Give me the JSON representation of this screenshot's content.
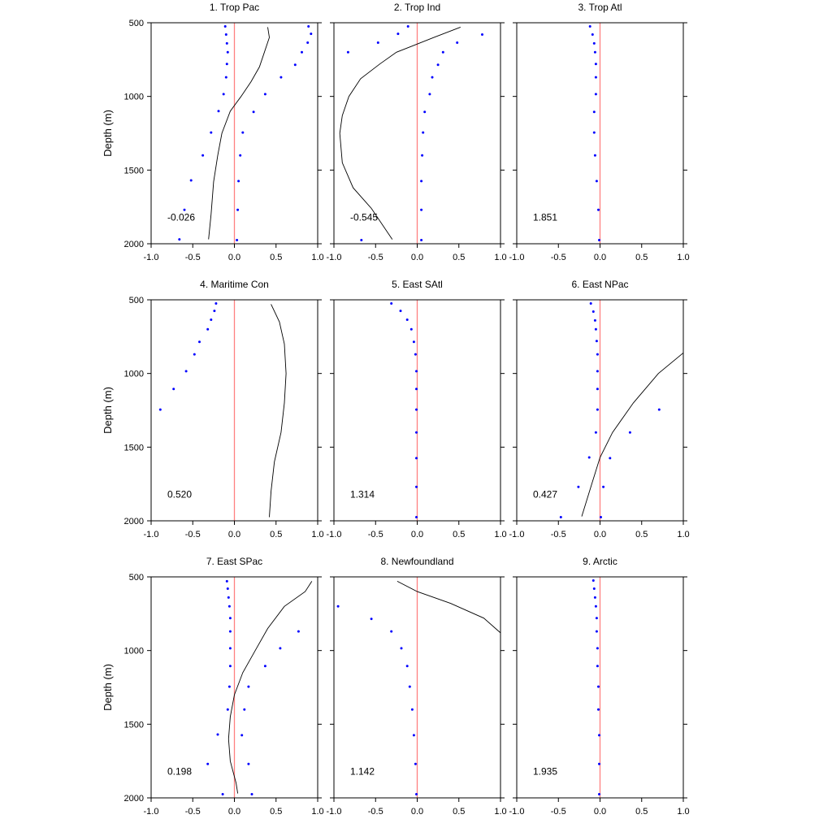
{
  "figure": {
    "ylabel": "Depth (m)",
    "xlim": [
      -1.0,
      1.0
    ],
    "ylim": [
      500,
      2000
    ],
    "y_inverted": true,
    "xticks": [
      "-1.0",
      "-0.5",
      "0.0",
      "0.5",
      "1.0"
    ],
    "yticks": [
      "500",
      "1000",
      "1500",
      "2000"
    ],
    "colors": {
      "points": "#0000ff",
      "zero_line": "#ff8080",
      "curve": "#000000",
      "axes": "#000000"
    }
  },
  "chart_data": [
    {
      "type": "scatter",
      "title": "1. Trop Pac",
      "annotation": "-0.026",
      "points": [
        [
          -0.11,
          525
        ],
        [
          -0.1,
          580
        ],
        [
          -0.09,
          640
        ],
        [
          -0.08,
          700
        ],
        [
          -0.09,
          780
        ],
        [
          -0.1,
          870
        ],
        [
          -0.13,
          985
        ],
        [
          -0.19,
          1100
        ],
        [
          -0.28,
          1245
        ],
        [
          -0.38,
          1400
        ],
        [
          -0.52,
          1570
        ],
        [
          -0.6,
          1770
        ],
        [
          -0.66,
          1970
        ],
        [
          0.89,
          525
        ],
        [
          0.92,
          575
        ],
        [
          0.88,
          635
        ],
        [
          0.81,
          700
        ],
        [
          0.73,
          785
        ],
        [
          0.56,
          870
        ],
        [
          0.37,
          985
        ],
        [
          0.23,
          1105
        ],
        [
          0.1,
          1245
        ],
        [
          0.07,
          1400
        ],
        [
          0.05,
          1575
        ],
        [
          0.04,
          1770
        ],
        [
          0.03,
          1975
        ]
      ],
      "curve": [
        [
          0.4,
          530
        ],
        [
          0.42,
          600
        ],
        [
          0.36,
          700
        ],
        [
          0.3,
          800
        ],
        [
          0.2,
          900
        ],
        [
          0.08,
          1000
        ],
        [
          -0.05,
          1100
        ],
        [
          -0.15,
          1250
        ],
        [
          -0.2,
          1400
        ],
        [
          -0.25,
          1580
        ],
        [
          -0.28,
          1800
        ],
        [
          -0.31,
          1970
        ]
      ]
    },
    {
      "type": "scatter",
      "title": "2. Trop Ind",
      "annotation": "-0.545",
      "points": [
        [
          -0.11,
          525
        ],
        [
          -0.23,
          575
        ],
        [
          -0.47,
          635
        ],
        [
          -0.83,
          700
        ],
        [
          0.78,
          580
        ],
        [
          0.48,
          635
        ],
        [
          0.31,
          700
        ],
        [
          0.25,
          785
        ],
        [
          0.18,
          870
        ],
        [
          0.15,
          985
        ],
        [
          0.09,
          1105
        ],
        [
          0.07,
          1245
        ],
        [
          0.06,
          1400
        ],
        [
          0.05,
          1575
        ],
        [
          0.05,
          1770
        ],
        [
          0.05,
          1975
        ],
        [
          -0.67,
          1975
        ]
      ],
      "curve": [
        [
          0.52,
          530
        ],
        [
          0.2,
          600
        ],
        [
          -0.25,
          700
        ],
        [
          -0.45,
          780
        ],
        [
          -0.68,
          880
        ],
        [
          -0.82,
          1000
        ],
        [
          -0.9,
          1130
        ],
        [
          -0.93,
          1250
        ],
        [
          -0.9,
          1450
        ],
        [
          -0.77,
          1620
        ],
        [
          -0.55,
          1760
        ],
        [
          -0.3,
          1970
        ]
      ]
    },
    {
      "type": "scatter",
      "title": "3. Trop Atl",
      "annotation": "1.851",
      "points": [
        [
          -0.12,
          525
        ],
        [
          -0.09,
          580
        ],
        [
          -0.07,
          640
        ],
        [
          -0.06,
          700
        ],
        [
          -0.05,
          780
        ],
        [
          -0.05,
          870
        ],
        [
          -0.05,
          985
        ],
        [
          -0.07,
          1105
        ],
        [
          -0.07,
          1245
        ],
        [
          -0.06,
          1400
        ],
        [
          -0.04,
          1575
        ],
        [
          -0.02,
          1770
        ],
        [
          -0.01,
          1975
        ]
      ],
      "curve": []
    },
    {
      "type": "scatter",
      "title": "4. Maritime Con",
      "annotation": "0.520",
      "points": [
        [
          -0.22,
          525
        ],
        [
          -0.24,
          575
        ],
        [
          -0.28,
          635
        ],
        [
          -0.32,
          700
        ],
        [
          -0.42,
          785
        ],
        [
          -0.48,
          870
        ],
        [
          -0.58,
          985
        ],
        [
          -0.73,
          1105
        ],
        [
          -0.89,
          1245
        ]
      ],
      "curve": [
        [
          0.44,
          530
        ],
        [
          0.54,
          650
        ],
        [
          0.6,
          800
        ],
        [
          0.62,
          1000
        ],
        [
          0.6,
          1200
        ],
        [
          0.56,
          1400
        ],
        [
          0.48,
          1600
        ],
        [
          0.44,
          1800
        ],
        [
          0.42,
          1975
        ]
      ]
    },
    {
      "type": "scatter",
      "title": "5. East SAtl",
      "annotation": "1.314",
      "points": [
        [
          -0.31,
          525
        ],
        [
          -0.2,
          575
        ],
        [
          -0.12,
          635
        ],
        [
          -0.07,
          700
        ],
        [
          -0.04,
          785
        ],
        [
          -0.02,
          870
        ],
        [
          -0.01,
          985
        ],
        [
          -0.01,
          1105
        ],
        [
          -0.01,
          1245
        ],
        [
          -0.01,
          1400
        ],
        [
          -0.01,
          1575
        ],
        [
          -0.01,
          1770
        ],
        [
          -0.01,
          1975
        ]
      ],
      "curve": []
    },
    {
      "type": "scatter",
      "title": "6. East NPac",
      "annotation": "0.427",
      "points": [
        [
          -0.11,
          525
        ],
        [
          -0.08,
          580
        ],
        [
          -0.06,
          640
        ],
        [
          -0.05,
          700
        ],
        [
          -0.04,
          780
        ],
        [
          -0.03,
          870
        ],
        [
          -0.03,
          985
        ],
        [
          -0.03,
          1105
        ],
        [
          -0.03,
          1245
        ],
        [
          -0.05,
          1400
        ],
        [
          -0.13,
          1570
        ],
        [
          -0.26,
          1770
        ],
        [
          -0.47,
          1975
        ],
        [
          0.71,
          1245
        ],
        [
          0.36,
          1400
        ],
        [
          0.12,
          1575
        ],
        [
          0.04,
          1770
        ],
        [
          0.01,
          1975
        ]
      ],
      "curve": [
        [
          1.0,
          860
        ],
        [
          0.7,
          1000
        ],
        [
          0.4,
          1200
        ],
        [
          0.15,
          1400
        ],
        [
          0.0,
          1570
        ],
        [
          -0.1,
          1750
        ],
        [
          -0.22,
          1970
        ]
      ]
    },
    {
      "type": "scatter",
      "title": "7. East SPac",
      "annotation": "0.198",
      "points": [
        [
          -0.09,
          530
        ],
        [
          -0.08,
          580
        ],
        [
          -0.07,
          640
        ],
        [
          -0.06,
          700
        ],
        [
          -0.05,
          780
        ],
        [
          -0.05,
          870
        ],
        [
          -0.05,
          985
        ],
        [
          -0.05,
          1105
        ],
        [
          -0.06,
          1245
        ],
        [
          -0.08,
          1400
        ],
        [
          -0.2,
          1570
        ],
        [
          -0.32,
          1770
        ],
        [
          -0.14,
          1975
        ],
        [
          0.77,
          870
        ],
        [
          0.55,
          985
        ],
        [
          0.37,
          1105
        ],
        [
          0.17,
          1245
        ],
        [
          0.12,
          1400
        ],
        [
          0.09,
          1575
        ],
        [
          0.17,
          1770
        ],
        [
          0.21,
          1975
        ]
      ],
      "curve": [
        [
          0.93,
          530
        ],
        [
          0.85,
          600
        ],
        [
          0.6,
          700
        ],
        [
          0.4,
          850
        ],
        [
          0.25,
          1000
        ],
        [
          0.1,
          1150
        ],
        [
          0.0,
          1300
        ],
        [
          -0.05,
          1450
        ],
        [
          -0.07,
          1600
        ],
        [
          -0.05,
          1750
        ],
        [
          0.02,
          1900
        ],
        [
          0.04,
          1970
        ]
      ]
    },
    {
      "type": "scatter",
      "title": "8. Newfoundland",
      "annotation": "1.142",
      "points": [
        [
          -0.95,
          700
        ],
        [
          -0.55,
          785
        ],
        [
          -0.31,
          870
        ],
        [
          -0.19,
          985
        ],
        [
          -0.12,
          1105
        ],
        [
          -0.09,
          1245
        ],
        [
          -0.06,
          1400
        ],
        [
          -0.04,
          1575
        ],
        [
          -0.02,
          1770
        ],
        [
          -0.01,
          1975
        ]
      ],
      "curve": [
        [
          -0.24,
          530
        ],
        [
          0.0,
          600
        ],
        [
          0.4,
          680
        ],
        [
          0.8,
          780
        ],
        [
          1.0,
          880
        ]
      ]
    },
    {
      "type": "scatter",
      "title": "9. Arctic",
      "annotation": "1.935",
      "points": [
        [
          -0.08,
          525
        ],
        [
          -0.07,
          580
        ],
        [
          -0.06,
          640
        ],
        [
          -0.05,
          700
        ],
        [
          -0.04,
          780
        ],
        [
          -0.04,
          870
        ],
        [
          -0.03,
          985
        ],
        [
          -0.03,
          1105
        ],
        [
          -0.02,
          1245
        ],
        [
          -0.02,
          1400
        ],
        [
          -0.01,
          1575
        ],
        [
          -0.01,
          1770
        ],
        [
          -0.01,
          1975
        ]
      ],
      "curve": []
    }
  ]
}
